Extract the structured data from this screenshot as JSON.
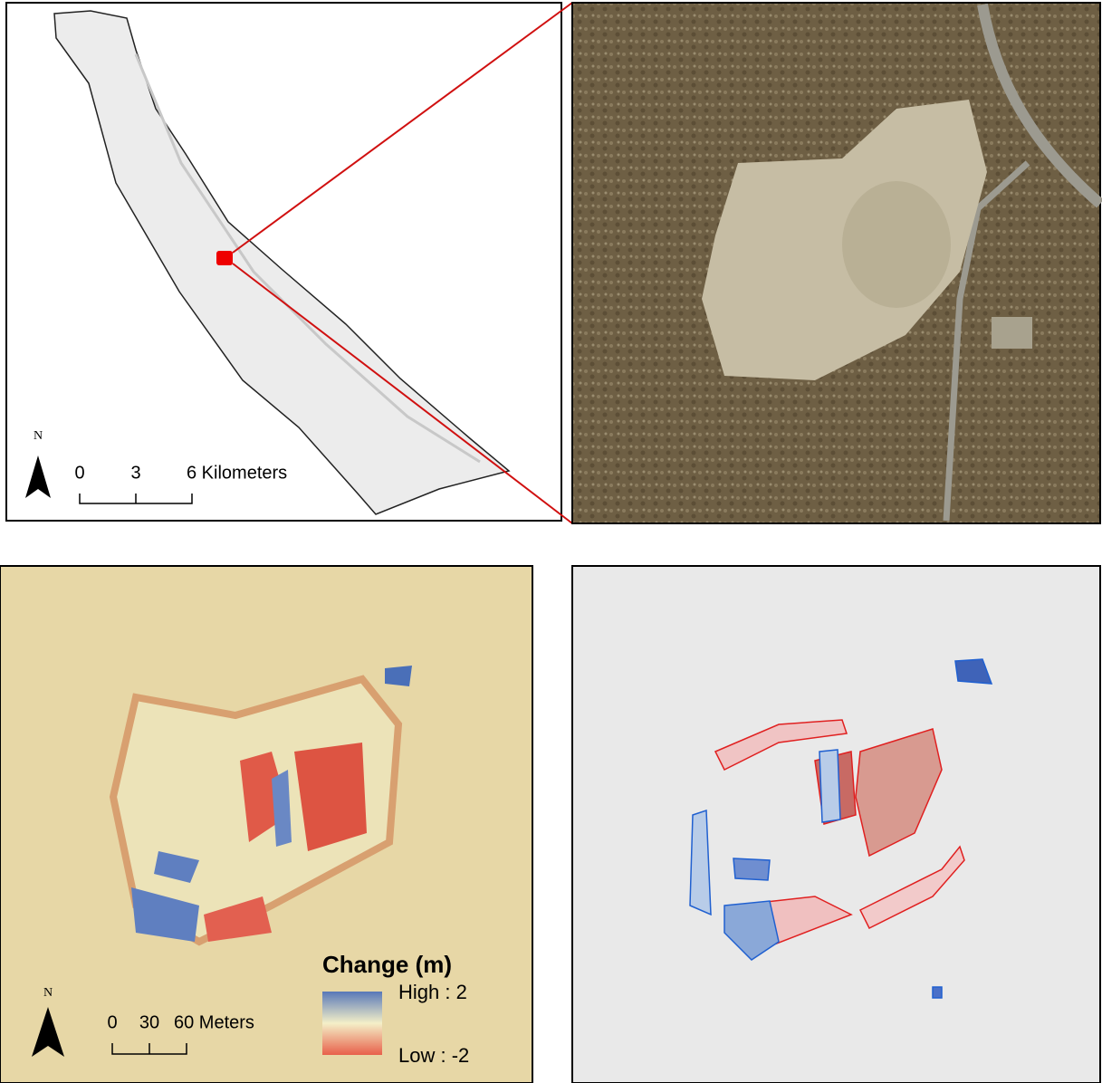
{
  "panels": {
    "overview": {
      "north": "N",
      "scale_labels": [
        "0",
        "3",
        "6 Kilometers"
      ]
    },
    "detail": {
      "north": "N",
      "scale_labels": [
        "0",
        "30",
        "60 Meters"
      ],
      "legend": {
        "title": "Change (m)",
        "high": "High : 2",
        "low": "Low : -2"
      }
    }
  }
}
